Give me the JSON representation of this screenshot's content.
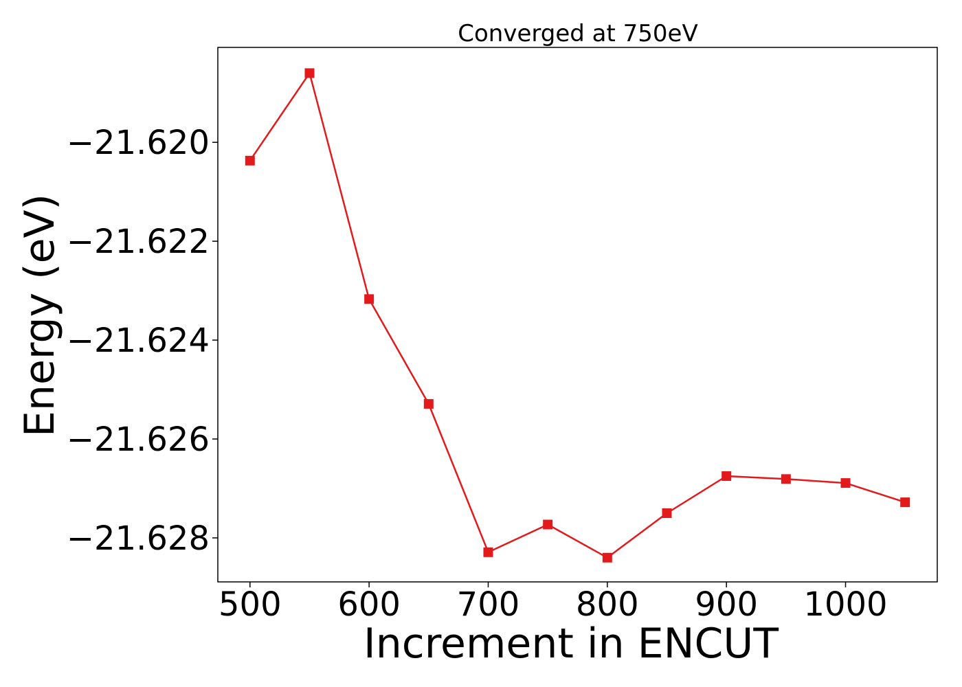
{
  "chart_data": {
    "type": "line",
    "title": "Converged at 750eV",
    "xlabel": "Increment in ENCUT",
    "ylabel": "Energy (eV)",
    "xlim": [
      473,
      1077
    ],
    "ylim": [
      -21.62889,
      -21.61808
    ],
    "x_ticks": [
      500,
      600,
      700,
      800,
      900,
      1000
    ],
    "x_tick_labels": [
      "500",
      "600",
      "700",
      "800",
      "900",
      "1000"
    ],
    "y_ticks": [
      -21.62,
      -21.622,
      -21.624,
      -21.626,
      -21.628
    ],
    "y_tick_labels": [
      "−21.620",
      "−21.622",
      "−21.624",
      "−21.626",
      "−21.628"
    ],
    "grid": false,
    "series": [
      {
        "color": "#e31a1c",
        "marker": "square",
        "x": [
          500,
          550,
          600,
          650,
          700,
          750,
          800,
          850,
          900,
          950,
          1000,
          1050
        ],
        "y": [
          -21.62037,
          -21.6186,
          -21.62317,
          -21.62529,
          -21.62829,
          -21.62773,
          -21.6284,
          -21.6275,
          -21.62675,
          -21.62681,
          -21.62689,
          -21.62728
        ]
      }
    ]
  }
}
